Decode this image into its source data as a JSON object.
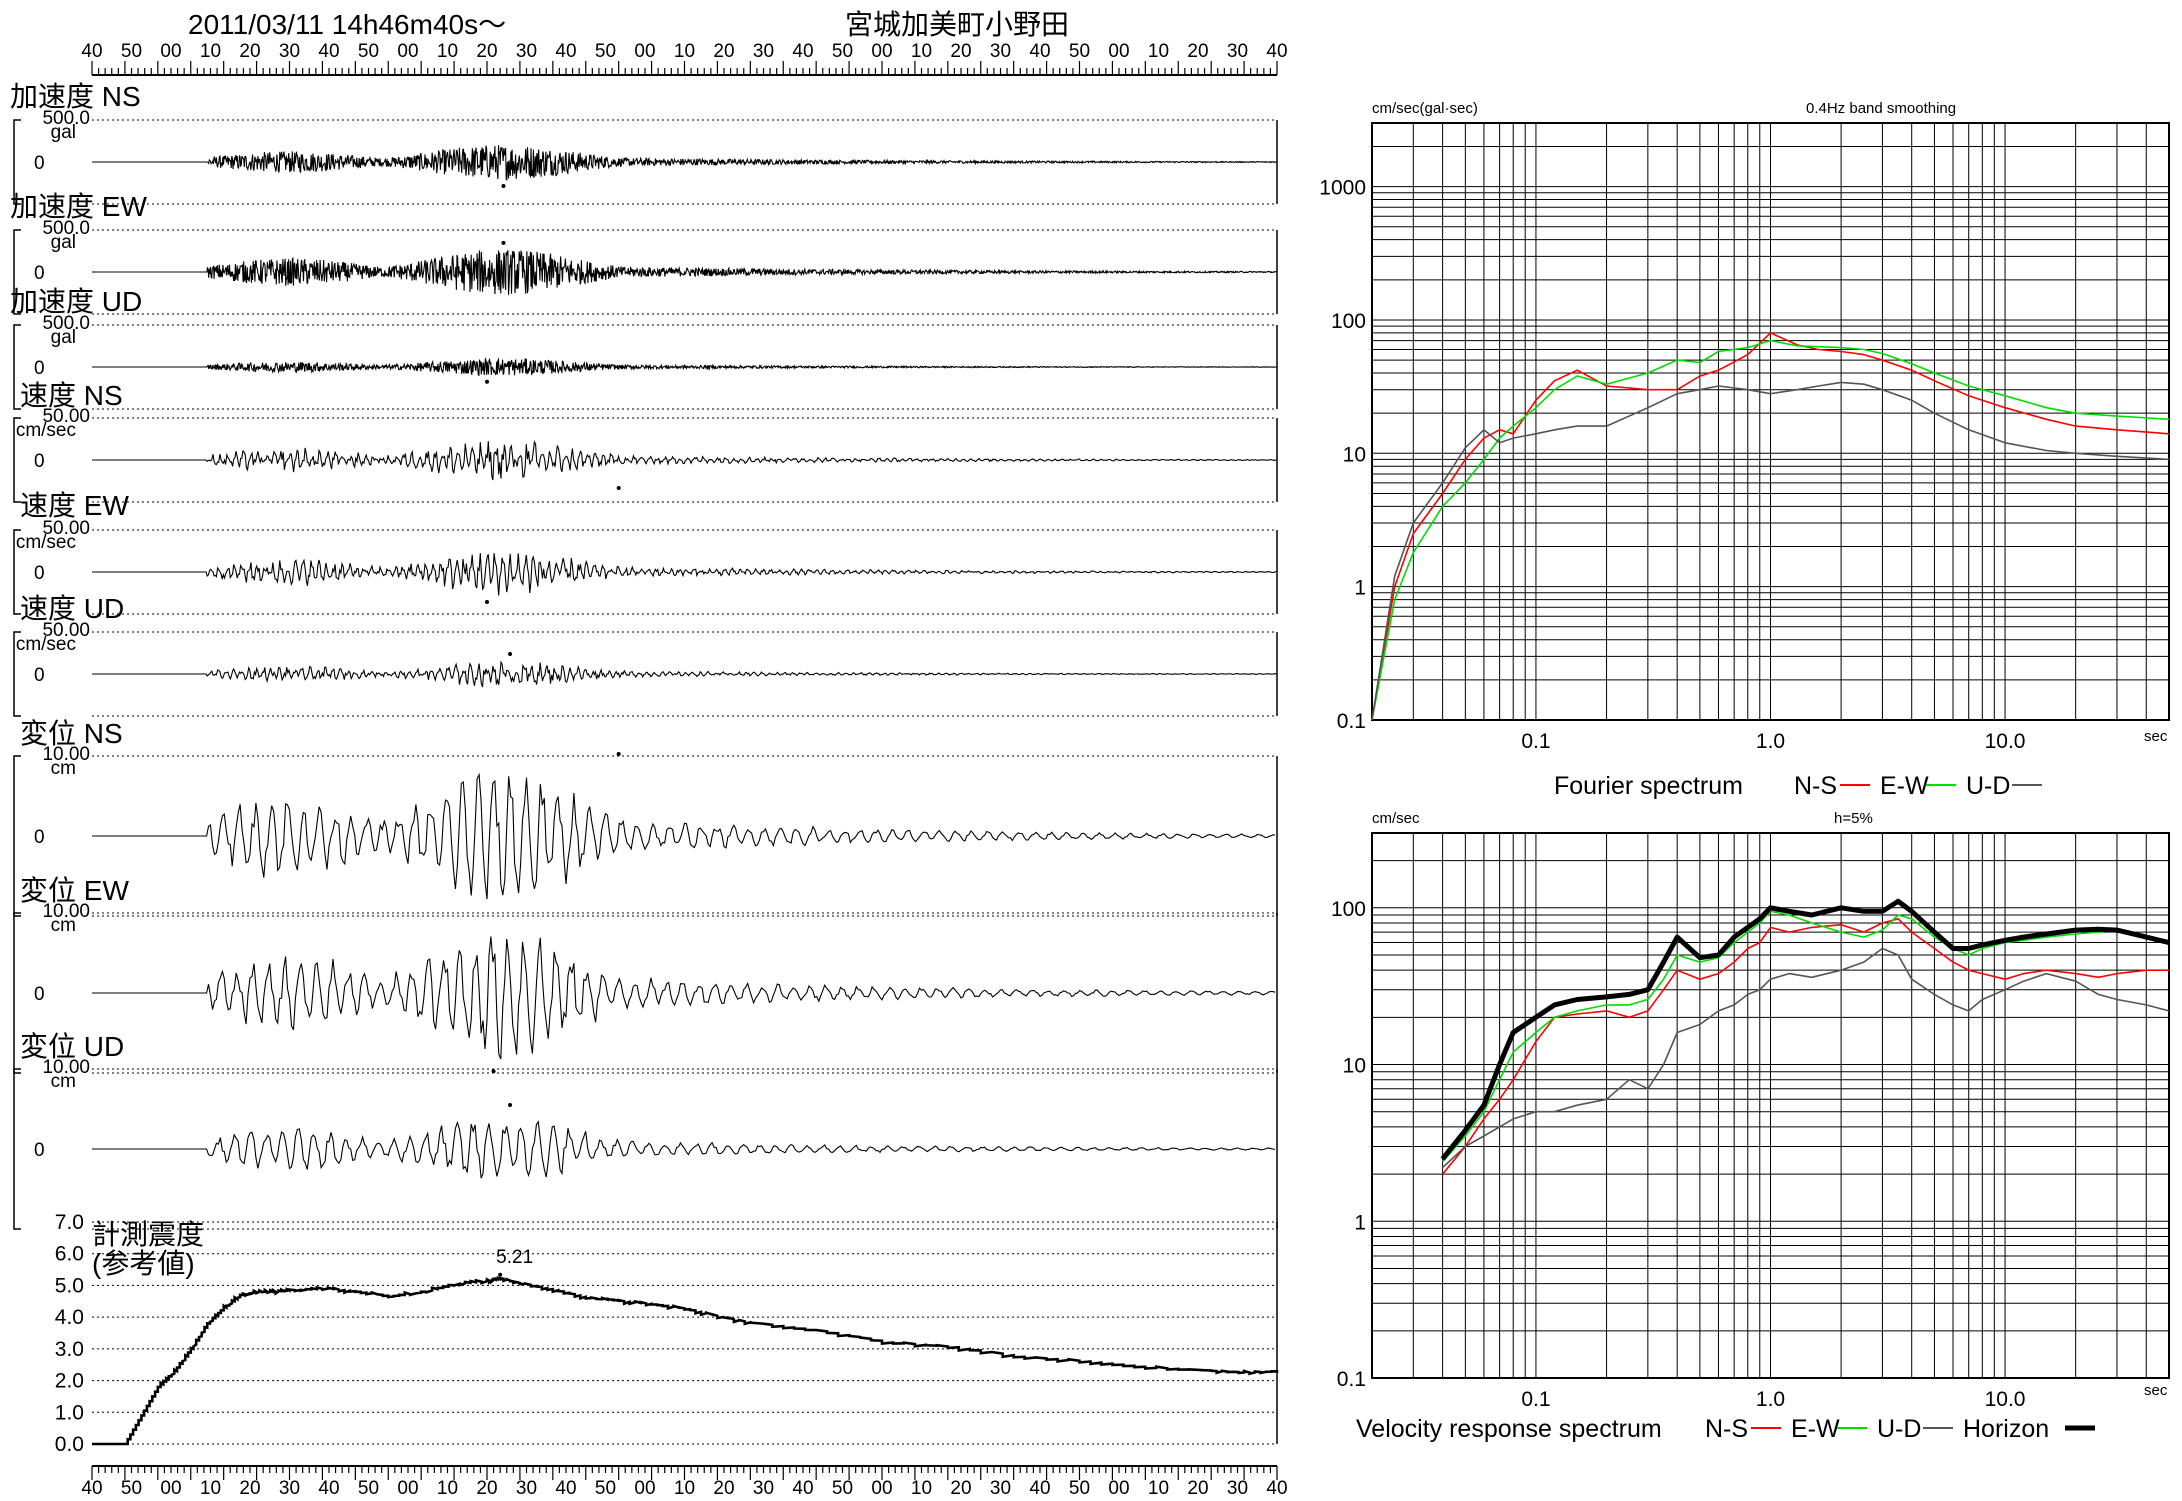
{
  "header": {
    "datetime": "2011/03/11  14h46m40s～",
    "station": "宮城加美町小野田"
  },
  "time_axis_ticks": [
    "40",
    "50",
    "00",
    "10",
    "20",
    "30",
    "40",
    "50",
    "00",
    "10",
    "20",
    "30",
    "40",
    "50",
    "00",
    "10",
    "20",
    "30",
    "40",
    "50",
    "00",
    "10",
    "20",
    "30",
    "40",
    "50",
    "00",
    "10",
    "20",
    "30",
    "40"
  ],
  "waveform_panels": [
    {
      "title": "加速度 NS",
      "scale": "500.0",
      "unit": "gal",
      "zero": "0",
      "amplitude": 0.45,
      "peak_sec": 125,
      "peak_sign": -1,
      "kind": "acc"
    },
    {
      "title": "加速度 EW",
      "scale": "500.0",
      "unit": "gal",
      "zero": "0",
      "amplitude": 0.58,
      "peak_sec": 125,
      "peak_sign": 1,
      "kind": "acc"
    },
    {
      "title": "加速度 UD",
      "scale": "500.0",
      "unit": "gal",
      "zero": "0",
      "amplitude": 0.22,
      "peak_sec": 120,
      "peak_sign": -1,
      "kind": "acc"
    },
    {
      "title": "速度 NS",
      "scale": "50.00",
      "unit": "cm/sec",
      "zero": "0",
      "amplitude": 0.55,
      "peak_sec": 160,
      "peak_sign": -1,
      "kind": "vel"
    },
    {
      "title": "速度 EW",
      "scale": "50.00",
      "unit": "cm/sec",
      "zero": "0",
      "amplitude": 0.6,
      "peak_sec": 120,
      "peak_sign": -1,
      "kind": "vel"
    },
    {
      "title": "速度 UD",
      "scale": "50.00",
      "unit": "cm/sec",
      "zero": "0",
      "amplitude": 0.35,
      "peak_sec": 127,
      "peak_sign": 1,
      "kind": "vel"
    },
    {
      "title": "変位 NS",
      "scale": "10.00",
      "unit": "cm",
      "zero": "0",
      "amplitude": 1.0,
      "peak_sec": 160,
      "peak_sign": 1,
      "kind": "disp"
    },
    {
      "title": "変位 EW",
      "scale": "10.00",
      "unit": "cm",
      "zero": "0",
      "amplitude": 0.95,
      "peak_sec": 122,
      "peak_sign": -1,
      "kind": "disp"
    },
    {
      "title": "変位 UD",
      "scale": "10.00",
      "unit": "cm",
      "zero": "0",
      "amplitude": 0.5,
      "peak_sec": 127,
      "peak_sign": 1,
      "kind": "disp"
    }
  ],
  "intensity_panel": {
    "label_line1": "計測震度",
    "label_line2": "(参考値)",
    "peak_label": "5.21",
    "peak_value": 5.21,
    "peak_sec": 124
  },
  "colors": {
    "ns": "#ff0000",
    "ew": "#00dd00",
    "ud": "#555555",
    "horizon": "#000000",
    "grid": "#000000"
  },
  "chart_data": [
    {
      "type": "line",
      "title": "計測震度 (参考値)",
      "xlabel": "",
      "ylabel": "",
      "xlim_sec": [
        0,
        360
      ],
      "ylim": [
        0,
        7
      ],
      "yticks": [
        "0.0",
        "1.0",
        "2.0",
        "3.0",
        "4.0",
        "5.0",
        "6.0",
        "7.0"
      ],
      "x_sec": [
        0,
        10,
        15,
        20,
        25,
        30,
        35,
        40,
        45,
        50,
        55,
        60,
        70,
        80,
        90,
        100,
        110,
        120,
        124,
        130,
        140,
        150,
        160,
        170,
        180,
        190,
        200,
        220,
        240,
        260,
        280,
        300,
        320,
        340,
        350,
        360
      ],
      "values": [
        0,
        0,
        0.9,
        1.8,
        2.3,
        3.0,
        3.8,
        4.3,
        4.7,
        4.8,
        4.8,
        4.85,
        4.9,
        4.8,
        4.65,
        4.8,
        5.05,
        5.15,
        5.21,
        5.05,
        4.85,
        4.6,
        4.5,
        4.4,
        4.25,
        4.0,
        3.8,
        3.55,
        3.2,
        3.05,
        2.75,
        2.6,
        2.4,
        2.3,
        2.25,
        2.3
      ]
    },
    {
      "type": "line",
      "title": "Fourier spectrum",
      "subtitle": "0.4Hz band smoothing",
      "ylabel": "cm/sec(gal·sec)",
      "xlabel": "sec",
      "x_scale": "log",
      "y_scale": "log",
      "xlim": [
        0.02,
        50
      ],
      "ylim": [
        0.1,
        3000
      ],
      "x_tick_labels": [
        "0.1",
        "1.0",
        "10.0"
      ],
      "y_tick_labels": [
        "0.1",
        "1",
        "10",
        "100",
        "1000"
      ],
      "legend": [
        "N-S",
        "E-W",
        "U-D"
      ],
      "x": [
        0.02,
        0.025,
        0.03,
        0.04,
        0.05,
        0.06,
        0.07,
        0.08,
        0.1,
        0.12,
        0.15,
        0.2,
        0.3,
        0.4,
        0.5,
        0.6,
        0.8,
        1.0,
        1.3,
        1.6,
        2.0,
        2.5,
        3,
        4,
        5,
        7,
        10,
        15,
        20,
        30,
        50
      ],
      "series": [
        {
          "name": "N-S",
          "values": [
            0.1,
            1.0,
            2.5,
            5,
            9,
            13,
            15,
            14,
            25,
            35,
            42,
            32,
            30,
            30,
            38,
            42,
            55,
            80,
            65,
            60,
            58,
            55,
            50,
            42,
            35,
            27,
            22,
            18,
            16,
            15,
            14
          ]
        },
        {
          "name": "E-W",
          "values": [
            0.1,
            0.8,
            1.8,
            4,
            6,
            9,
            13,
            16,
            22,
            30,
            38,
            33,
            40,
            50,
            48,
            58,
            62,
            70,
            64,
            63,
            62,
            60,
            56,
            47,
            40,
            32,
            27,
            22,
            20,
            19,
            18
          ]
        },
        {
          "name": "U-D",
          "values": [
            0.1,
            1.2,
            3,
            6,
            11,
            15,
            12,
            13,
            14,
            15,
            16,
            16,
            22,
            28,
            30,
            32,
            30,
            28,
            30,
            32,
            34,
            33,
            30,
            25,
            20,
            15,
            12,
            10.5,
            10,
            9.5,
            9
          ]
        }
      ]
    },
    {
      "type": "line",
      "title": "Velocity response spectrum",
      "subtitle": "h=5%",
      "ylabel": "cm/sec",
      "xlabel": "sec",
      "x_scale": "log",
      "y_scale": "log",
      "xlim": [
        0.02,
        50
      ],
      "ylim": [
        0.1,
        300
      ],
      "x_tick_labels": [
        "0.1",
        "1.0",
        "10.0"
      ],
      "y_tick_labels": [
        "0.1",
        "1",
        "10",
        "100"
      ],
      "legend": [
        "N-S",
        "E-W",
        "U-D",
        "Horizon"
      ],
      "x": [
        0.04,
        0.05,
        0.06,
        0.07,
        0.08,
        0.1,
        0.12,
        0.15,
        0.2,
        0.25,
        0.3,
        0.35,
        0.4,
        0.5,
        0.6,
        0.7,
        0.8,
        0.9,
        1.0,
        1.2,
        1.5,
        2.0,
        2.5,
        3.0,
        3.5,
        4.0,
        5,
        6,
        7,
        8,
        10,
        12,
        15,
        20,
        25,
        30,
        40,
        50
      ],
      "series": [
        {
          "name": "N-S",
          "values": [
            2,
            3,
            4.5,
            6,
            8,
            14,
            20,
            21,
            22,
            20,
            22,
            30,
            40,
            35,
            38,
            45,
            55,
            60,
            75,
            70,
            75,
            78,
            70,
            80,
            85,
            70,
            55,
            45,
            40,
            38,
            35,
            38,
            40,
            38,
            36,
            38,
            40,
            40
          ]
        },
        {
          "name": "E-W",
          "values": [
            2.4,
            3.5,
            5,
            8,
            12,
            16,
            20,
            22,
            24,
            24,
            26,
            35,
            50,
            45,
            48,
            60,
            70,
            80,
            95,
            90,
            80,
            70,
            65,
            72,
            90,
            85,
            65,
            55,
            50,
            55,
            60,
            62,
            65,
            68,
            70,
            72,
            65,
            60
          ]
        },
        {
          "name": "U-D",
          "values": [
            2.2,
            3,
            3.5,
            4,
            4.5,
            5,
            5,
            5.5,
            6,
            8,
            7,
            10,
            16,
            18,
            22,
            24,
            28,
            30,
            35,
            38,
            36,
            40,
            45,
            55,
            50,
            35,
            28,
            24,
            22,
            26,
            30,
            34,
            38,
            34,
            28,
            26,
            24,
            22
          ]
        },
        {
          "name": "Horizon",
          "values": [
            2.5,
            3.8,
            5.5,
            10,
            16,
            20,
            24,
            26,
            27,
            28,
            30,
            45,
            65,
            48,
            50,
            65,
            75,
            85,
            100,
            95,
            90,
            100,
            95,
            95,
            110,
            95,
            70,
            55,
            55,
            58,
            62,
            65,
            68,
            72,
            73,
            72,
            65,
            60
          ]
        }
      ]
    }
  ]
}
